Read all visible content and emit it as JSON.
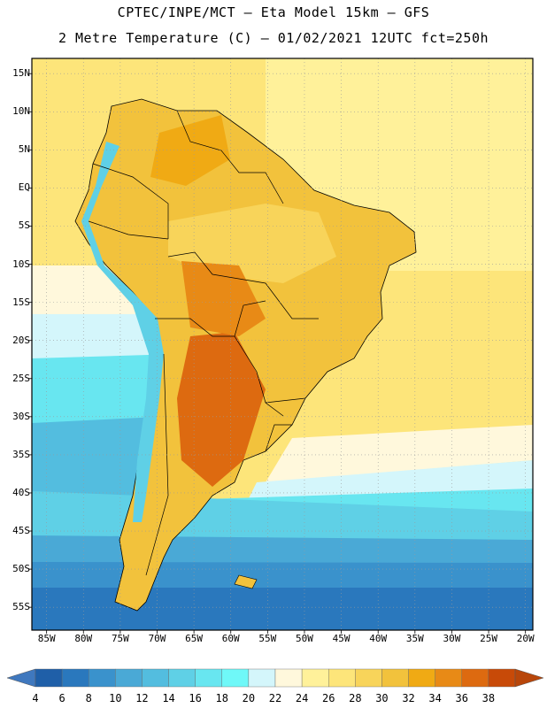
{
  "header": {
    "line1": "CPTEC/INPE/MCT –  Eta Model 15km – GFS",
    "line2": "2 Metre Temperature (C) – 01/02/2021 12UTC fct=250h"
  },
  "axes": {
    "lat_labels": [
      "15N",
      "10N",
      "5N",
      "EQ",
      "5S",
      "10S",
      "15S",
      "20S",
      "25S",
      "30S",
      "35S",
      "40S",
      "45S",
      "50S",
      "55S"
    ],
    "lat_values": [
      15,
      10,
      5,
      0,
      -5,
      -10,
      -15,
      -20,
      -25,
      -30,
      -35,
      -40,
      -45,
      -50,
      -55
    ],
    "lon_labels": [
      "85W",
      "80W",
      "75W",
      "70W",
      "65W",
      "60W",
      "55W",
      "50W",
      "45W",
      "40W",
      "35W",
      "30W",
      "25W",
      "20W"
    ],
    "lon_values": [
      -85,
      -80,
      -75,
      -70,
      -65,
      -60,
      -55,
      -50,
      -45,
      -40,
      -35,
      -30,
      -25,
      -20
    ],
    "lat_range": [
      -58,
      17
    ],
    "lon_range": [
      -87,
      -19
    ]
  },
  "colorbar": {
    "labels": [
      "4",
      "6",
      "8",
      "10",
      "12",
      "14",
      "16",
      "18",
      "20",
      "22",
      "24",
      "26",
      "28",
      "30",
      "32",
      "34",
      "36",
      "38"
    ],
    "colors": [
      "#1f5fa8",
      "#2a78bd",
      "#3a92cc",
      "#4aa9d6",
      "#53bddf",
      "#5fd0e6",
      "#68e6f0",
      "#6ff8f8",
      "#d4f6fb",
      "#fff8dc",
      "#fff19a",
      "#fde57a",
      "#f8d45a",
      "#f2c23c",
      "#f0aa14",
      "#e88a16",
      "#dd6a10",
      "#c84a08"
    ],
    "end_low_color": "#3f78be",
    "end_high_color": "#b8460a"
  },
  "colors": {
    "ocean_warm": "#fde57a",
    "ocean_mild": "#fff19a",
    "land_hot": "#f2c23c",
    "land_very_hot": "#e88a16",
    "andes_cold": "#5fd0e6",
    "border": "#000000"
  }
}
